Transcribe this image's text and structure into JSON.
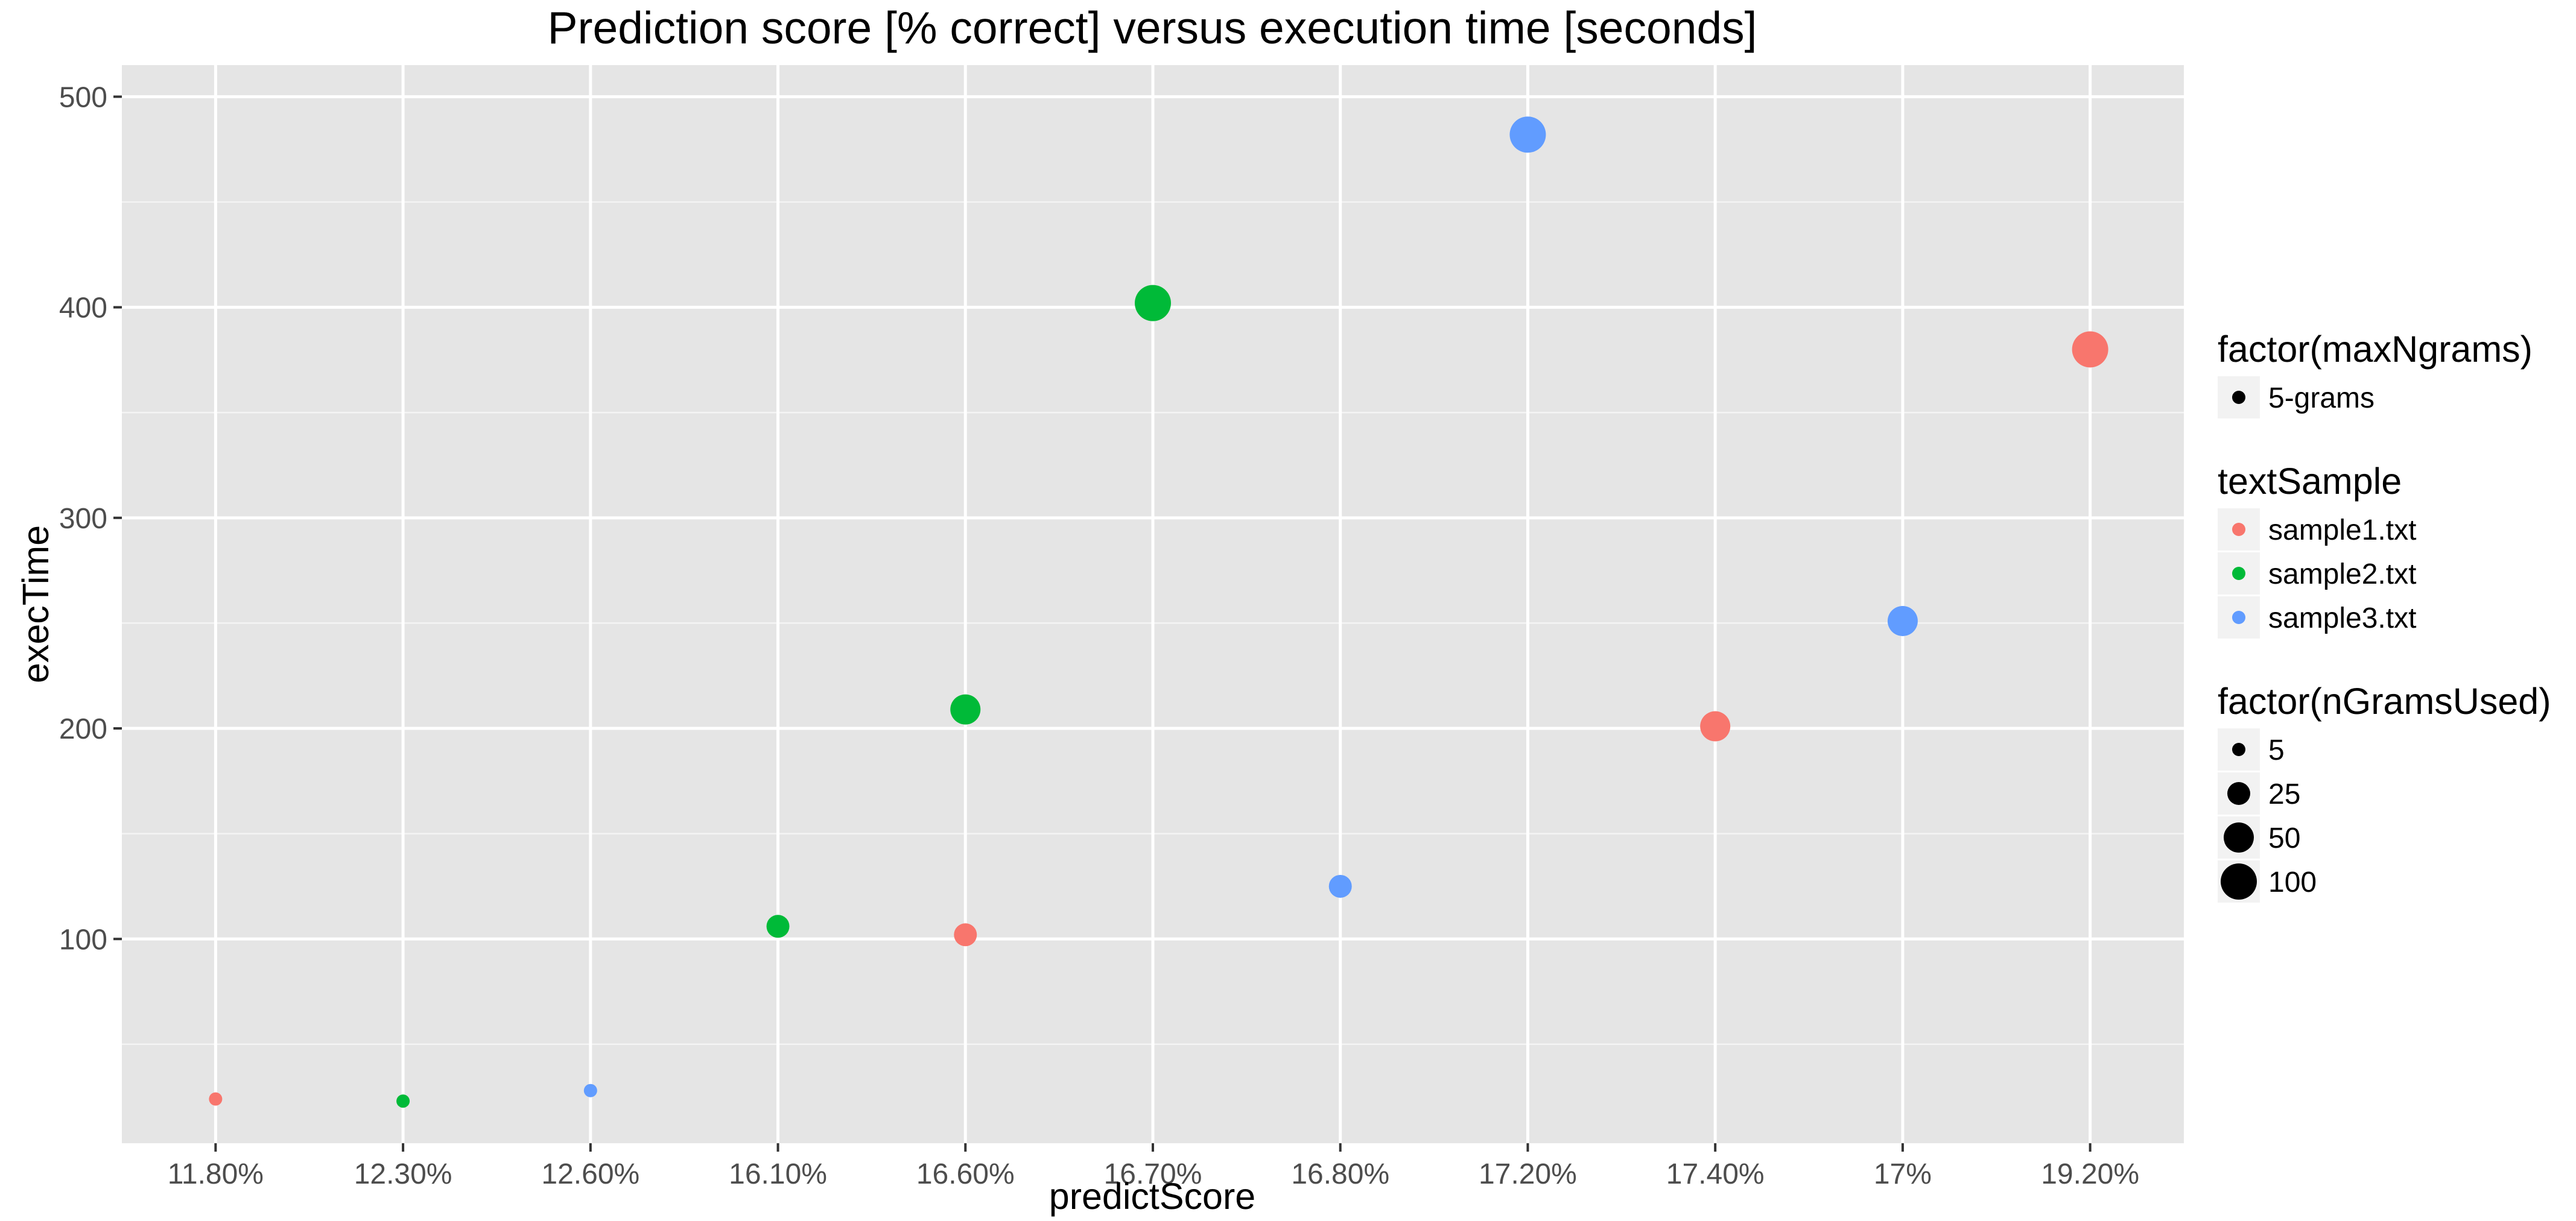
{
  "chart_data": {
    "type": "scatter",
    "title": "Prediction score [% correct] versus execution time [seconds]",
    "xlabel": "predictScore",
    "ylabel": "execTime",
    "x_scale": "categorical",
    "categories": [
      "11.80%",
      "12.30%",
      "12.60%",
      "16.10%",
      "16.60%",
      "16.70%",
      "16.80%",
      "17.20%",
      "17.40%",
      "17%",
      "19.20%"
    ],
    "y_ticks": [
      100,
      200,
      300,
      400,
      500
    ],
    "ylim": [
      3,
      515
    ],
    "grid": true,
    "background": "#e5e5e5",
    "legend_position": "right",
    "legends": [
      {
        "title": "factor(maxNgrams)",
        "kind": "size",
        "entries": [
          {
            "label": "5-grams",
            "size_value": 5
          }
        ]
      },
      {
        "title": "textSample",
        "kind": "color",
        "entries": [
          {
            "label": "sample1.txt",
            "color": "#f8766d"
          },
          {
            "label": "sample2.txt",
            "color": "#00ba38"
          },
          {
            "label": "sample3.txt",
            "color": "#619cff"
          }
        ]
      },
      {
        "title": "factor(nGramsUsed)",
        "kind": "size",
        "entries": [
          {
            "label": "5",
            "size_value": 5
          },
          {
            "label": "25",
            "size_value": 25
          },
          {
            "label": "50",
            "size_value": 50
          },
          {
            "label": "100",
            "size_value": 100
          }
        ]
      }
    ],
    "series": [
      {
        "name": "sample1.txt",
        "color": "#f8766d",
        "points": [
          {
            "x": "11.80%",
            "y": 24,
            "nGramsUsed": 5
          },
          {
            "x": "16.60%",
            "y": 102,
            "nGramsUsed": 25
          },
          {
            "x": "17.40%",
            "y": 201,
            "nGramsUsed": 50
          },
          {
            "x": "19.20%",
            "y": 380,
            "nGramsUsed": 100
          }
        ]
      },
      {
        "name": "sample2.txt",
        "color": "#00ba38",
        "points": [
          {
            "x": "12.30%",
            "y": 23,
            "nGramsUsed": 5
          },
          {
            "x": "16.10%",
            "y": 106,
            "nGramsUsed": 25
          },
          {
            "x": "16.60%",
            "y": 209,
            "nGramsUsed": 50
          },
          {
            "x": "16.70%",
            "y": 402,
            "nGramsUsed": 100
          }
        ]
      },
      {
        "name": "sample3.txt",
        "color": "#619cff",
        "points": [
          {
            "x": "12.60%",
            "y": 28,
            "nGramsUsed": 5
          },
          {
            "x": "16.80%",
            "y": 125,
            "nGramsUsed": 25
          },
          {
            "x": "17%",
            "y": 251,
            "nGramsUsed": 50
          },
          {
            "x": "17.20%",
            "y": 482,
            "nGramsUsed": 100
          }
        ]
      }
    ]
  }
}
